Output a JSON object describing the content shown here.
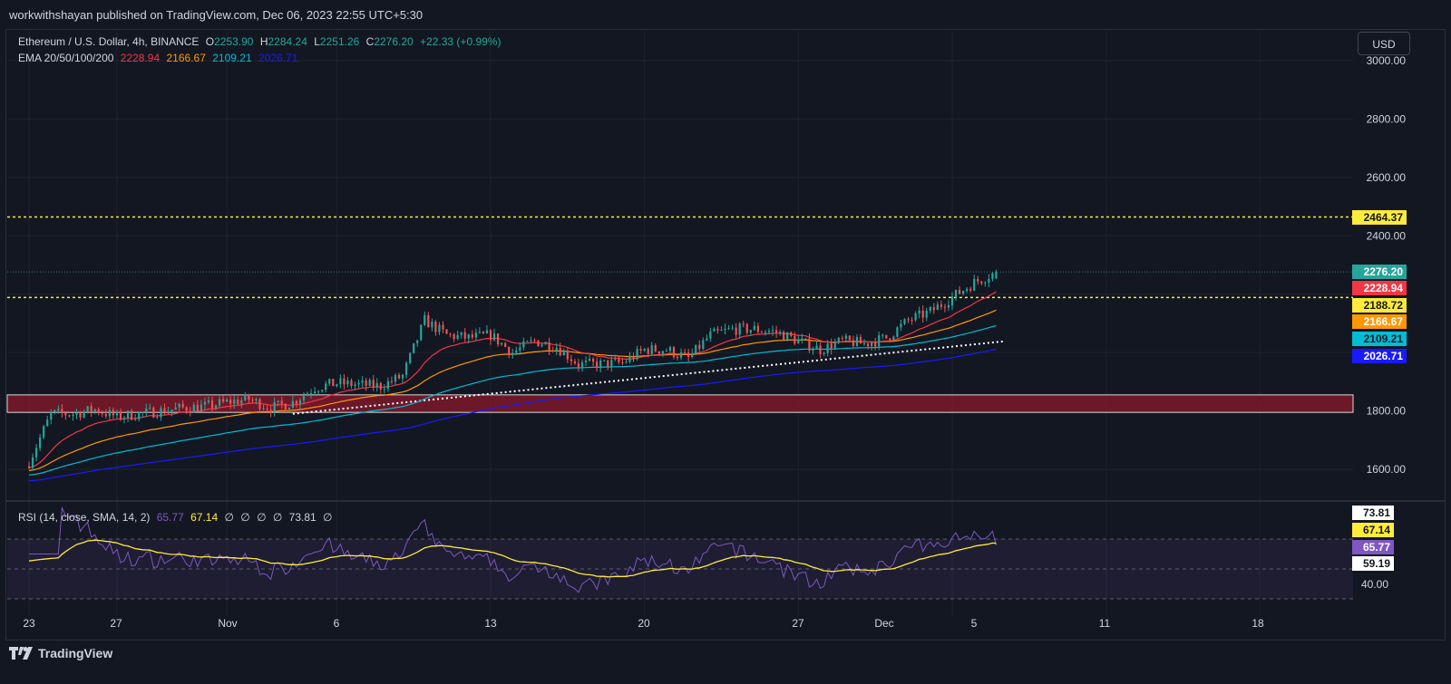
{
  "header": {
    "publisher": "workwithshayan published on TradingView.com, Dec 06, 2023 22:55 UTC+5:30"
  },
  "legend": {
    "symbol": "Ethereum / U.S. Dollar, 4h, BINANCE",
    "o_label": "O",
    "o_value": "2253.90",
    "h_label": "H",
    "h_value": "2284.24",
    "l_label": "L",
    "l_value": "2251.26",
    "c_label": "C",
    "c_value": "2276.20",
    "change": "+22.33 (+0.99%)",
    "ema_label": "EMA 20/50/100/200",
    "ema20": "2228.94",
    "ema50": "2166.67",
    "ema100": "2109.21",
    "ema200": "2026.71",
    "rsi_label": "RSI (14, close, SMA, 14, 2)",
    "rsi_value": "65.77",
    "rsi_sma": "67.14",
    "rsi_empty1": "∅",
    "rsi_empty2": "∅",
    "rsi_empty3": "∅",
    "rsi_empty4": "∅",
    "rsi_extra": "73.81",
    "rsi_empty5": "∅"
  },
  "currency_button": "USD",
  "price_axis": [
    "3000.00",
    "2800.00",
    "2600.00",
    "2400.00",
    "1800.00",
    "1600.00"
  ],
  "price_tags": {
    "resistance": "2464.37",
    "last": "2276.20",
    "ema20": "2228.94",
    "support_line": "2188.72",
    "ema50": "2166.67",
    "ema100": "2109.21",
    "ema200": "2026.71"
  },
  "rsi_axis": {
    "r1": "73.81",
    "r2": "67.14",
    "r3": "65.77",
    "r4": "59.19",
    "r5": "40.00"
  },
  "time_axis": [
    "23",
    "27",
    "Nov",
    "6",
    "13",
    "20",
    "27",
    "Dec",
    "5",
    "11",
    "18"
  ],
  "footer": {
    "brand": "TradingView"
  },
  "colors": {
    "background": "#131722",
    "up": "#26a69a",
    "down": "#ef5350",
    "ema20": "#f23645",
    "ema50": "#ff9800",
    "ema100": "#00bcd4",
    "ema200": "#1a1aff",
    "level": "#ffeb3b",
    "zone": "#8b1a2b",
    "rsi": "#7e57c2",
    "rsi_sma": "#ffeb3b"
  },
  "chart_data": {
    "type": "candlestick",
    "ylim": [
      1550,
      3050
    ],
    "horizontal_levels": [
      2464.37,
      2188.72
    ],
    "support_zone": [
      1795,
      1855
    ],
    "ema_last": {
      "ema20": 2228.94,
      "ema50": 2166.67,
      "ema100": 2109.21,
      "ema200": 2026.71
    },
    "close_anchors": [
      [
        "Oct 23",
        1625
      ],
      [
        "Oct 24",
        1790
      ],
      [
        "Oct 25",
        1790
      ],
      [
        "Oct 26",
        1805
      ],
      [
        "Oct 27",
        1780
      ],
      [
        "Oct 28",
        1790
      ],
      [
        "Oct 29",
        1800
      ],
      [
        "Oct 30",
        1810
      ],
      [
        "Oct 31",
        1815
      ],
      [
        "Nov 1",
        1830
      ],
      [
        "Nov 2",
        1840
      ],
      [
        "Nov 3",
        1810
      ],
      [
        "Nov 4",
        1830
      ],
      [
        "Nov 5",
        1880
      ],
      [
        "Nov 6",
        1895
      ],
      [
        "Nov 7",
        1890
      ],
      [
        "Nov 8",
        1885
      ],
      [
        "Nov 9",
        1920
      ],
      [
        "Nov 10",
        2110
      ],
      [
        "Nov 11",
        2060
      ],
      [
        "Nov 12",
        2050
      ],
      [
        "Nov 13",
        2060
      ],
      [
        "Nov 14",
        2000
      ],
      [
        "Nov 15",
        2040
      ],
      [
        "Nov 16",
        2020
      ],
      [
        "Nov 17",
        1960
      ],
      [
        "Nov 18",
        1960
      ],
      [
        "Nov 19",
        1965
      ],
      [
        "Nov 20",
        2010
      ],
      [
        "Nov 21",
        2010
      ],
      [
        "Nov 22",
        1980
      ],
      [
        "Nov 23",
        2060
      ],
      [
        "Nov 24",
        2080
      ],
      [
        "Nov 25",
        2080
      ],
      [
        "Nov 26",
        2070
      ],
      [
        "Nov 27",
        2040
      ],
      [
        "Nov 28",
        2010
      ],
      [
        "Nov 29",
        2040
      ],
      [
        "Nov 30",
        2030
      ],
      [
        "Dec 1",
        2050
      ],
      [
        "Dec 2",
        2110
      ],
      [
        "Dec 3",
        2140
      ],
      [
        "Dec 4",
        2190
      ],
      [
        "Dec 5",
        2240
      ],
      [
        "Dec 6",
        2276.2
      ]
    ],
    "rsi": {
      "overbought": 70,
      "oversold": 30,
      "last": 65.77,
      "sma_last": 67.14
    }
  }
}
